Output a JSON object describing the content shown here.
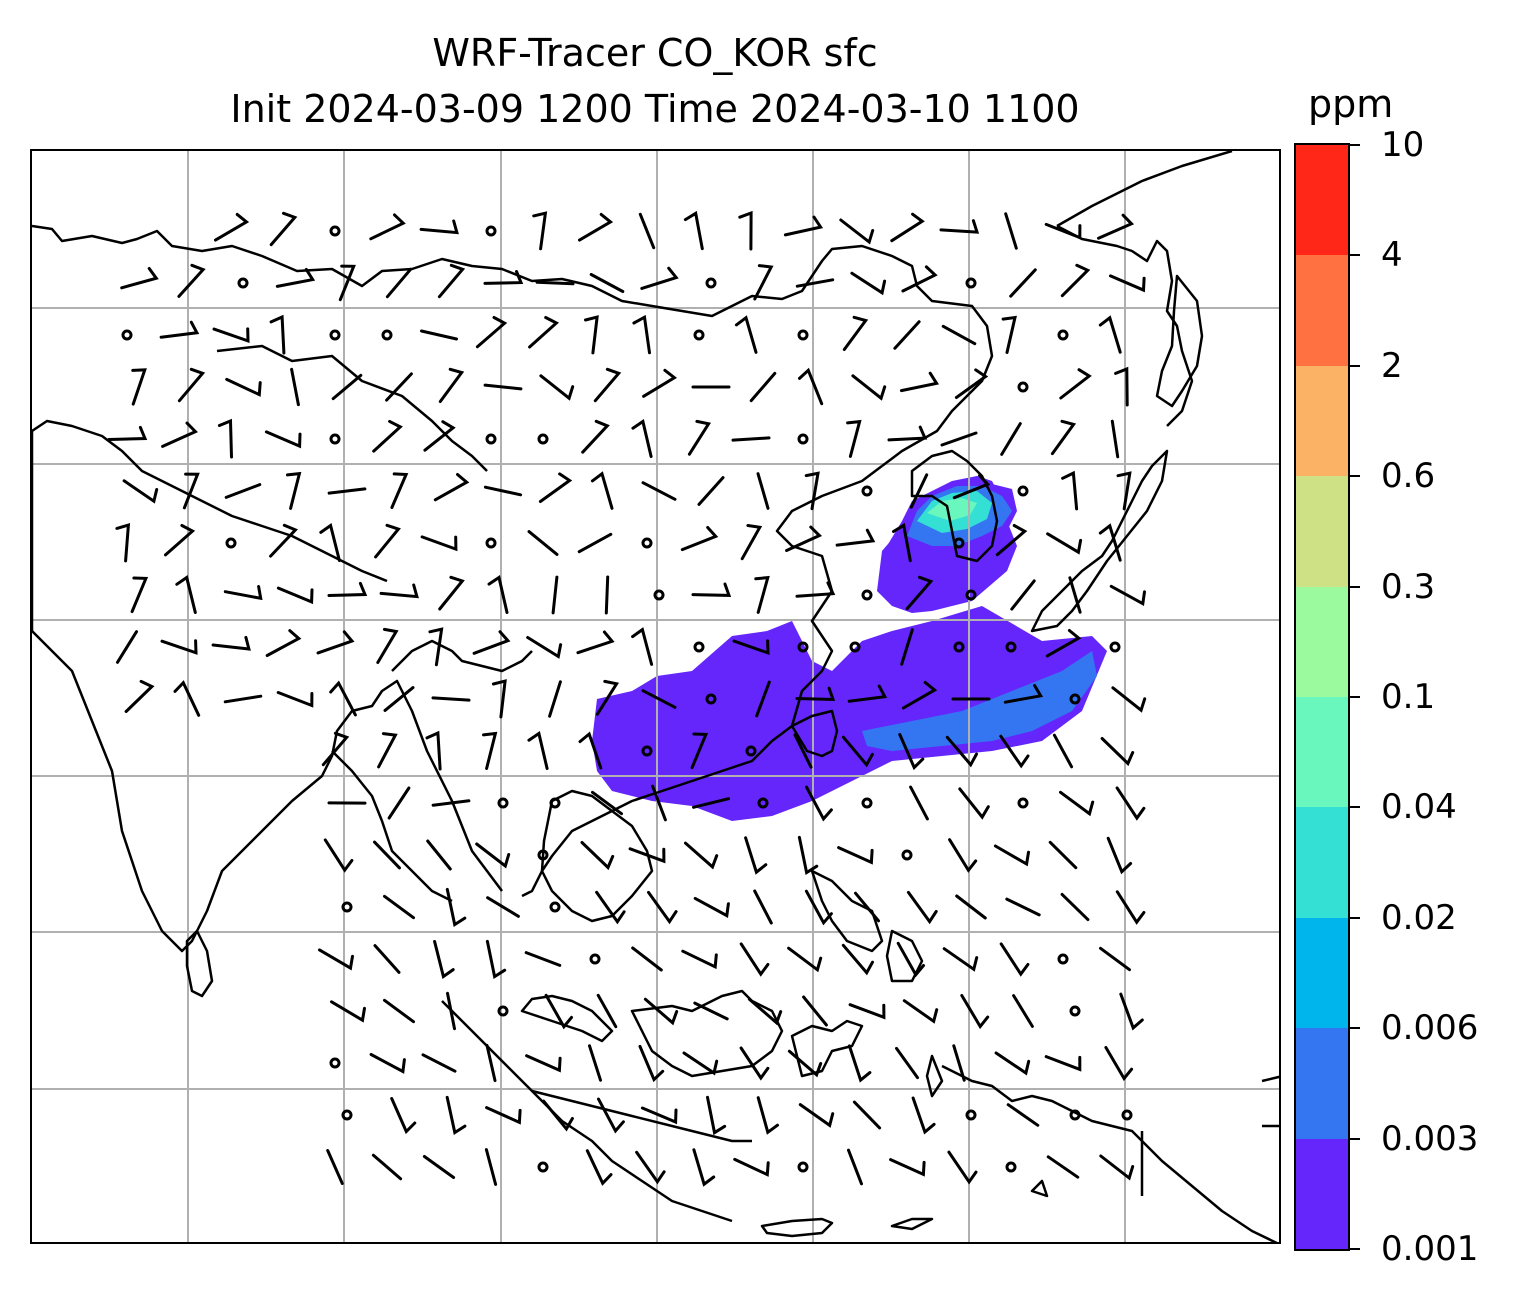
{
  "title": {
    "line1": "WRF-Tracer CO_KOR sfc",
    "line2": "Init 2024-03-09 1200 Time 2024-03-10 1100"
  },
  "colorbar": {
    "unit": "ppm",
    "levels": [
      "0.001",
      "0.003",
      "0.006",
      "0.02",
      "0.04",
      "0.1",
      "0.3",
      "0.6",
      "2",
      "4",
      "10"
    ],
    "colors": [
      "#6526fb",
      "#3476f2",
      "#00b4ec",
      "#34e0d4",
      "#69f7bd",
      "#9bfa9e",
      "#cfe185",
      "#fbb265",
      "#ff7140",
      "#ff2718"
    ]
  },
  "map": {
    "gridlines": true,
    "grid_color": "#b0b0b0",
    "coastline_color": "#000000",
    "wind_barbs": true,
    "station_circles": true
  }
}
